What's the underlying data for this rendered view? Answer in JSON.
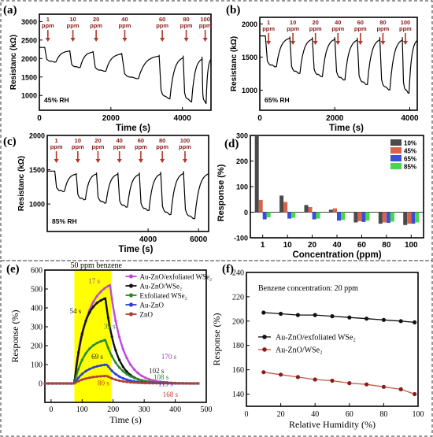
{
  "colors": {
    "arrow": "#b5362a",
    "ppm_text": "#8a1c1c",
    "highlight": "#ffff00"
  },
  "chart_data": [
    {
      "panel": "(a)",
      "type": "line",
      "xlabel": "Time (s)",
      "ylabel": "Resistanc (kΩ)",
      "annotation": "45% RH",
      "xlim": [
        0,
        4800
      ],
      "ylim": [
        600,
        3200
      ],
      "xticks": [
        0,
        2000,
        4000
      ],
      "yticks": [
        1000,
        1500,
        2000,
        2500,
        3000
      ],
      "ppm_labels": [
        "1",
        "10",
        "20",
        "40",
        "60",
        "80",
        "100"
      ],
      "ppm_unit": "ppm",
      "events": [
        150,
        850,
        1500,
        2300,
        3350,
        4020,
        4550
      ],
      "baseline": [
        2300,
        2220,
        2200,
        2150,
        2100,
        2080,
        2050
      ],
      "minimum": [
        1900,
        1750,
        1650,
        1450,
        900,
        820,
        780
      ]
    },
    {
      "panel": "(b)",
      "type": "line",
      "xlabel": "Time (s)",
      "ylabel": "Resistanc (kΩ)",
      "annotation": "65% RH",
      "xlim": [
        0,
        4200
      ],
      "ylim": [
        700,
        2100
      ],
      "xticks": [
        0,
        2000,
        4000
      ],
      "yticks": [
        1000,
        1500,
        2000
      ],
      "ppm_labels": [
        "1",
        "10",
        "20",
        "40",
        "60",
        "80",
        "100"
      ],
      "ppm_unit": "ppm",
      "events": [
        150,
        800,
        1400,
        2000,
        2600,
        3200,
        3800
      ],
      "baseline": [
        1820,
        1810,
        1800,
        1800,
        1790,
        1800,
        1800
      ],
      "minimum": [
        1350,
        1250,
        1200,
        1150,
        1080,
        1000,
        950
      ]
    },
    {
      "panel": "(c)",
      "type": "line",
      "xlabel": "Time (s)",
      "ylabel": "Resistanc (kΩ)",
      "annotation": "85% RH",
      "xlim": [
        0,
        6400
      ],
      "ylim": [
        600,
        2000
      ],
      "xticks": [
        4000,
        6000
      ],
      "yticks": [
        1000,
        1500,
        2000
      ],
      "ppm_labels": [
        "1",
        "10",
        "20",
        "40",
        "60",
        "80",
        "100"
      ],
      "ppm_unit": "ppm",
      "events": [
        300,
        1150,
        1950,
        2800,
        3650,
        4500,
        5400
      ],
      "baseline": [
        1480,
        1450,
        1460,
        1460,
        1460,
        1470,
        1480
      ],
      "minimum": [
        1180,
        1060,
        1010,
        950,
        900,
        840,
        780
      ]
    },
    {
      "panel": "(d)",
      "type": "bar",
      "xlabel": "Concentration (ppm)",
      "ylabel": "Response (%)",
      "categories": [
        "1",
        "10",
        "20",
        "40",
        "60",
        "80",
        "100"
      ],
      "ylim": [
        -100,
        300
      ],
      "yticks": [
        -100,
        0,
        100,
        200,
        300
      ],
      "legend_position": "top-right",
      "series": [
        {
          "name": "10%",
          "color": "#4a4a4a",
          "values": [
            300,
            65,
            28,
            10,
            -40,
            -45,
            -50
          ]
        },
        {
          "name": "45%",
          "color": "#d9624a",
          "values": [
            48,
            40,
            20,
            15,
            -35,
            -40,
            -45
          ]
        },
        {
          "name": "65%",
          "color": "#3b4fd6",
          "values": [
            -28,
            -25,
            -28,
            -33,
            -38,
            -42,
            -45
          ]
        },
        {
          "name": "85%",
          "color": "#46d84b",
          "values": [
            -20,
            -22,
            -25,
            -30,
            -33,
            -37,
            -40
          ]
        }
      ]
    },
    {
      "panel": "(e)",
      "type": "line",
      "title": "50 ppm benzene",
      "xlabel": "Time (s)",
      "ylabel": "Response (%)",
      "xlim": [
        -20,
        500
      ],
      "ylim": [
        -100,
        600
      ],
      "xticks": [
        0,
        100,
        200,
        300,
        400,
        500
      ],
      "yticks": [
        0,
        100,
        200,
        300,
        400,
        500,
        600
      ],
      "highlight_range": [
        75,
        195
      ],
      "legend_position": "top-right",
      "series": [
        {
          "name": "Au-ZnO/exfoliated WSe₂",
          "color": "#c04ad8",
          "peak": 520,
          "t_on": 75,
          "t_peak": 190,
          "tau_rise": 40,
          "tau_decay": 40
        },
        {
          "name": "Au-ZnO/WSe₂",
          "color": "#111111",
          "peak": 450,
          "t_on": 75,
          "t_peak": 175,
          "tau_rise": 30,
          "tau_decay": 35
        },
        {
          "name": "Exfoliated WSe₂",
          "color": "#2a8a2a",
          "peak": 230,
          "t_on": 75,
          "t_peak": 175,
          "tau_rise": 35,
          "tau_decay": 45
        },
        {
          "name": "Au-ZnO",
          "color": "#2a3fd8",
          "peak": 100,
          "t_on": 75,
          "t_peak": 180,
          "tau_rise": 40,
          "tau_decay": 40
        },
        {
          "name": "ZnO",
          "color": "#b0403a",
          "peak": 40,
          "t_on": 75,
          "t_peak": 180,
          "tau_rise": 40,
          "tau_decay": 40
        }
      ],
      "time_labels": [
        {
          "text": "17 s",
          "t": 120,
          "r": 530,
          "color": "#9a3fbf"
        },
        {
          "text": "54 s",
          "t": 60,
          "r": 370,
          "color": "#222222"
        },
        {
          "text": "39 s",
          "t": 170,
          "r": 290,
          "color": "#2a8a2a"
        },
        {
          "text": "69 s",
          "t": 130,
          "r": 130,
          "color": "#222222"
        },
        {
          "text": "80 s",
          "t": 150,
          "r": -10,
          "color": "#c03a2a"
        },
        {
          "text": "170 s",
          "t": 355,
          "r": 130,
          "color": "#9a3fbf"
        },
        {
          "text": "102 s",
          "t": 315,
          "r": 55,
          "color": "#222222"
        },
        {
          "text": "108 s",
          "t": 330,
          "r": 20,
          "color": "#2a8a2a"
        },
        {
          "text": "119 s",
          "t": 345,
          "r": -15,
          "color": "#2a3fd8"
        },
        {
          "text": "168 s",
          "t": 360,
          "r": -70,
          "color": "#c03a2a"
        }
      ]
    },
    {
      "panel": "(f)",
      "type": "line",
      "annotation": "Benzene concentration: 20 ppm",
      "xlabel": "Relative Humidity (%)",
      "ylabel": "Response (%)",
      "xlim": [
        0,
        100
      ],
      "ylim": [
        130,
        240
      ],
      "xticks": [
        0,
        20,
        40,
        60,
        80,
        100
      ],
      "yticks": [
        140,
        160,
        180,
        200,
        220,
        240
      ],
      "legend_position": "center-right",
      "series": [
        {
          "name": "Au-ZnO/exfoliated WSe₂",
          "color": "#111111",
          "marker": "#111111",
          "x": [
            10,
            20,
            30,
            40,
            50,
            60,
            70,
            80,
            90,
            98
          ],
          "y": [
            207,
            206,
            205,
            205,
            204,
            203,
            202,
            201,
            200,
            199
          ]
        },
        {
          "name": "Au-ZnO/WSe₂",
          "color": "#c05a45",
          "marker": "#8a1c1c",
          "x": [
            10,
            20,
            30,
            40,
            50,
            60,
            70,
            80,
            90,
            98
          ],
          "y": [
            158,
            156,
            154,
            152,
            151,
            149,
            148,
            146,
            144,
            140
          ]
        }
      ]
    }
  ]
}
